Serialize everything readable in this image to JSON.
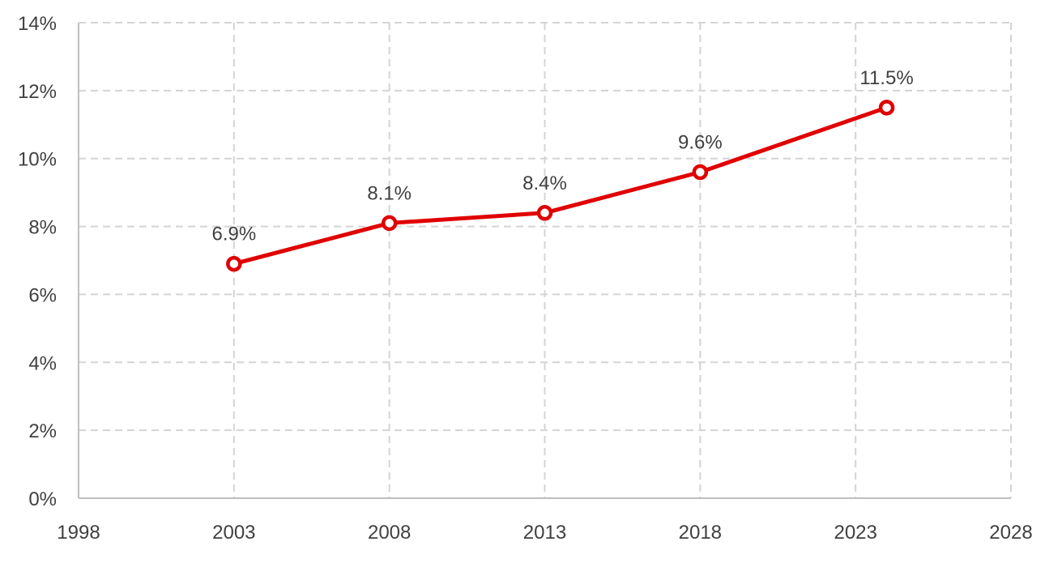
{
  "chart_data": {
    "type": "line",
    "title": "",
    "xlabel": "",
    "ylabel": "",
    "x": [
      2003,
      2008,
      2013,
      2018,
      2024
    ],
    "series": [
      {
        "values": [
          6.9,
          8.1,
          8.4,
          9.6,
          11.5
        ],
        "color": "#e00000",
        "data_labels": [
          "6.9%",
          "8.1%",
          "8.4%",
          "9.6%",
          "11.5%"
        ],
        "marker": "circle-hollow"
      }
    ],
    "xlim": [
      1998,
      2028
    ],
    "ylim": [
      0,
      14
    ],
    "x_ticks": [
      1998,
      2003,
      2008,
      2013,
      2018,
      2023,
      2028
    ],
    "y_ticks": [
      0,
      2,
      4,
      6,
      8,
      10,
      12,
      14
    ],
    "y_tick_labels": [
      "0%",
      "2%",
      "4%",
      "6%",
      "8%",
      "10%",
      "12%",
      "14%"
    ],
    "grid": true,
    "grid_style": "dashed",
    "legend": "none"
  }
}
